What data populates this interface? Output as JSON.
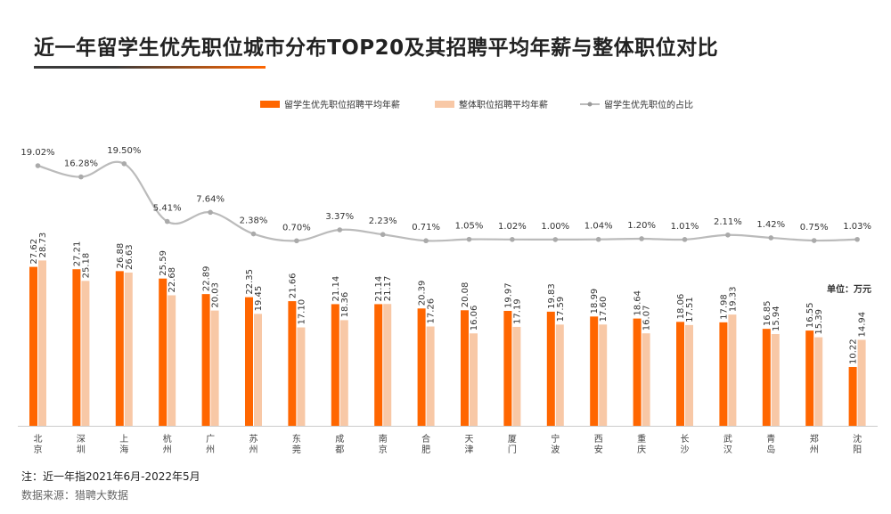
{
  "title": "近一年留学生优先职位城市分布TOP20及其招聘平均年薪与整体职位对比",
  "unit_label": "单位：万元",
  "note": "注：近一年指2021年6月-2022年5月",
  "source": "数据来源：猎聘大数据",
  "colors": {
    "series1": "#ff6600",
    "series2": "#f8c8a6",
    "series3": "#bbbbbb",
    "text": "#333333"
  },
  "chart_data": {
    "type": "bar",
    "categories": [
      "北京",
      "深圳",
      "上海",
      "杭州",
      "广州",
      "苏州",
      "东莞",
      "成都",
      "南京",
      "合肥",
      "天津",
      "厦门",
      "宁波",
      "西安",
      "重庆",
      "长沙",
      "武汉",
      "青岛",
      "郑州",
      "沈阳"
    ],
    "series": [
      {
        "name": "留学生优先职位招聘平均年薪",
        "type": "bar",
        "values": [
          27.62,
          27.21,
          26.88,
          25.59,
          22.89,
          22.35,
          21.66,
          21.14,
          21.14,
          20.39,
          20.08,
          19.97,
          19.83,
          18.99,
          18.64,
          18.06,
          17.98,
          16.85,
          16.55,
          10.22
        ]
      },
      {
        "name": "整体职位招聘平均年薪",
        "type": "bar",
        "values": [
          28.73,
          25.18,
          26.63,
          22.68,
          20.03,
          19.45,
          17.1,
          18.36,
          21.17,
          17.26,
          16.06,
          17.19,
          17.59,
          17.6,
          16.07,
          17.51,
          19.33,
          15.94,
          15.39,
          14.94
        ]
      },
      {
        "name": "留学生优先职位的占比",
        "type": "line",
        "values": [
          19.02,
          16.28,
          19.5,
          5.41,
          7.64,
          2.38,
          0.7,
          3.37,
          2.23,
          0.71,
          1.05,
          1.02,
          1.0,
          1.04,
          1.2,
          1.01,
          2.11,
          1.42,
          0.75,
          1.03
        ],
        "labels": [
          "19.02%",
          "16.28%",
          "19.50%",
          "5.41%",
          "7.64%",
          "2.38%",
          "0.70%",
          "3.37%",
          "2.23%",
          "0.71%",
          "1.05%",
          "1.02%",
          "1.00%",
          "1.04%",
          "1.20%",
          "1.01%",
          "2.11%",
          "1.42%",
          "0.75%",
          "1.03%"
        ]
      }
    ],
    "legend_position": "top-right",
    "grid": false
  }
}
